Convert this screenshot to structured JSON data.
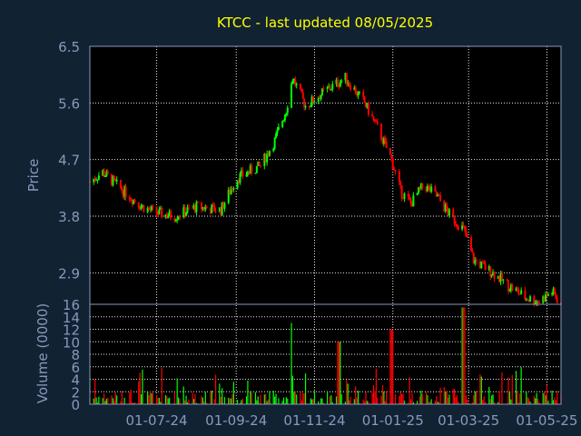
{
  "chart_data": [
    {
      "type": "candlestick",
      "title": "KTCC -  last updated 08/05/2025",
      "ylabel": "Price",
      "ylim": [
        2.4,
        6.5
      ],
      "yticks": [
        "6.5",
        "5.6",
        "4.7",
        "3.8",
        "2.9"
      ],
      "grid": true,
      "x_range": [
        "2024-05-10",
        "2025-05-12"
      ],
      "up_color": "#00ff00",
      "down_color": "#ff0000",
      "anchors": [
        {
          "date": "2024-05-10",
          "price": 4.35
        },
        {
          "date": "2024-05-20",
          "price": 4.5
        },
        {
          "date": "2024-06-05",
          "price": 4.2
        },
        {
          "date": "2024-06-20",
          "price": 3.95
        },
        {
          "date": "2024-07-01",
          "price": 3.85
        },
        {
          "date": "2024-07-15",
          "price": 3.8
        },
        {
          "date": "2024-08-01",
          "price": 3.95
        },
        {
          "date": "2024-08-20",
          "price": 3.9
        },
        {
          "date": "2024-09-01",
          "price": 4.4
        },
        {
          "date": "2024-09-20",
          "price": 4.6
        },
        {
          "date": "2024-10-01",
          "price": 5.0
        },
        {
          "date": "2024-10-10",
          "price": 5.5
        },
        {
          "date": "2024-10-15",
          "price": 6.0
        },
        {
          "date": "2024-10-25",
          "price": 5.55
        },
        {
          "date": "2024-11-10",
          "price": 5.8
        },
        {
          "date": "2024-11-25",
          "price": 6.0
        },
        {
          "date": "2024-12-10",
          "price": 5.6
        },
        {
          "date": "2024-12-20",
          "price": 5.2
        },
        {
          "date": "2024-12-31",
          "price": 4.7
        },
        {
          "date": "2025-01-07",
          "price": 4.2
        },
        {
          "date": "2025-01-15",
          "price": 4.0
        },
        {
          "date": "2025-01-25",
          "price": 4.3
        },
        {
          "date": "2025-02-05",
          "price": 4.1
        },
        {
          "date": "2025-02-15",
          "price": 3.8
        },
        {
          "date": "2025-02-25",
          "price": 3.6
        },
        {
          "date": "2025-03-05",
          "price": 3.1
        },
        {
          "date": "2025-03-20",
          "price": 2.9
        },
        {
          "date": "2025-04-01",
          "price": 2.7
        },
        {
          "date": "2025-04-15",
          "price": 2.5
        },
        {
          "date": "2025-04-25",
          "price": 2.45
        },
        {
          "date": "2025-05-05",
          "price": 2.6
        },
        {
          "date": "2025-05-12",
          "price": 2.4
        }
      ]
    },
    {
      "type": "bar",
      "ylabel": "Volume (0000)",
      "ylim": [
        0,
        16
      ],
      "yticks": [
        "16",
        "14",
        "12",
        "10",
        "8",
        "6",
        "4",
        "2",
        "0"
      ],
      "xticks": [
        {
          "date": "2024-07-01",
          "label": "01-07-24"
        },
        {
          "date": "2024-09-01",
          "label": "01-09-24"
        },
        {
          "date": "2024-11-01",
          "label": "01-11-24"
        },
        {
          "date": "2025-01-01",
          "label": "01-01-25"
        },
        {
          "date": "2025-03-01",
          "label": "01-03-25"
        },
        {
          "date": "2025-05-01",
          "label": "01-05-25"
        }
      ],
      "notable_spikes": [
        {
          "date": "2024-10-13",
          "value": 13
        },
        {
          "date": "2024-11-20",
          "value": 10
        },
        {
          "date": "2024-12-31",
          "value": 12
        },
        {
          "date": "2025-02-25",
          "value": 15.5
        }
      ]
    }
  ],
  "colors": {
    "background": "#112233",
    "panel": "#000000",
    "grid": "#ffffff",
    "axis_text": "#8899bb",
    "title": "#ffff00"
  }
}
